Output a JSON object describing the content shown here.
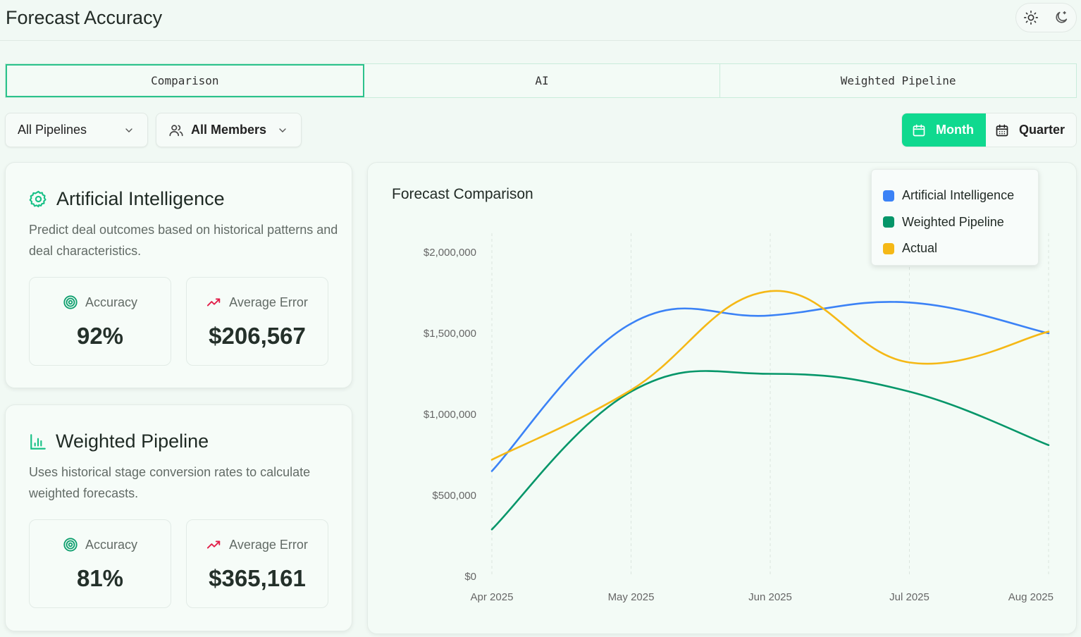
{
  "header": {
    "title": "Forecast Accuracy"
  },
  "theme": {
    "light_icon": "sun-icon",
    "dark_icon": "moon-icon"
  },
  "tabs": [
    {
      "label": "Comparison",
      "active": true
    },
    {
      "label": "AI",
      "active": false
    },
    {
      "label": "Weighted Pipeline",
      "active": false
    }
  ],
  "filters": {
    "pipelines": {
      "label": "All Pipelines",
      "icon": "chevron-down-icon"
    },
    "members": {
      "label": "All Members",
      "icon": "users-icon"
    }
  },
  "period": {
    "month_label": "Month",
    "quarter_label": "Quarter",
    "selected": "Month"
  },
  "cards": {
    "ai": {
      "title": "Artificial Intelligence",
      "icon": "ai-gear-icon",
      "description": "Predict deal outcomes based on historical patterns and deal characteristics.",
      "accuracy_label": "Accuracy",
      "accuracy_value": "92%",
      "error_label": "Average Error",
      "error_value": "$206,567"
    },
    "wp": {
      "title": "Weighted Pipeline",
      "icon": "bar-chart-icon",
      "description": "Uses historical stage conversion rates to calculate weighted forecasts.",
      "accuracy_label": "Accuracy",
      "accuracy_value": "81%",
      "error_label": "Average Error",
      "error_value": "$365,161"
    }
  },
  "colors": {
    "accent": "#10d98f",
    "ai": "#3b82f6",
    "weighted": "#059669",
    "actual": "#f5b816",
    "error_trend": "#e11d48"
  },
  "chart_data": {
    "type": "line",
    "title": "Forecast Comparison",
    "categories": [
      "Apr 2025",
      "May 2025",
      "Jun 2025",
      "Jul 2025",
      "Aug 2025"
    ],
    "y_ticks": [
      "$0",
      "$500,000",
      "$1,000,000",
      "$1,500,000",
      "$2,000,000"
    ],
    "ylim": [
      0,
      2000000
    ],
    "grid": "vertical dashed",
    "legend_position": "top-right",
    "series": [
      {
        "name": "Artificial Intelligence",
        "color": "#3b82f6",
        "values": [
          650000,
          1560000,
          1610000,
          1690000,
          1500000
        ]
      },
      {
        "name": "Weighted Pipeline",
        "color": "#059669",
        "values": [
          290000,
          1140000,
          1250000,
          1140000,
          810000
        ]
      },
      {
        "name": "Actual",
        "color": "#f5b816",
        "values": [
          720000,
          1150000,
          1760000,
          1320000,
          1510000
        ]
      }
    ]
  }
}
